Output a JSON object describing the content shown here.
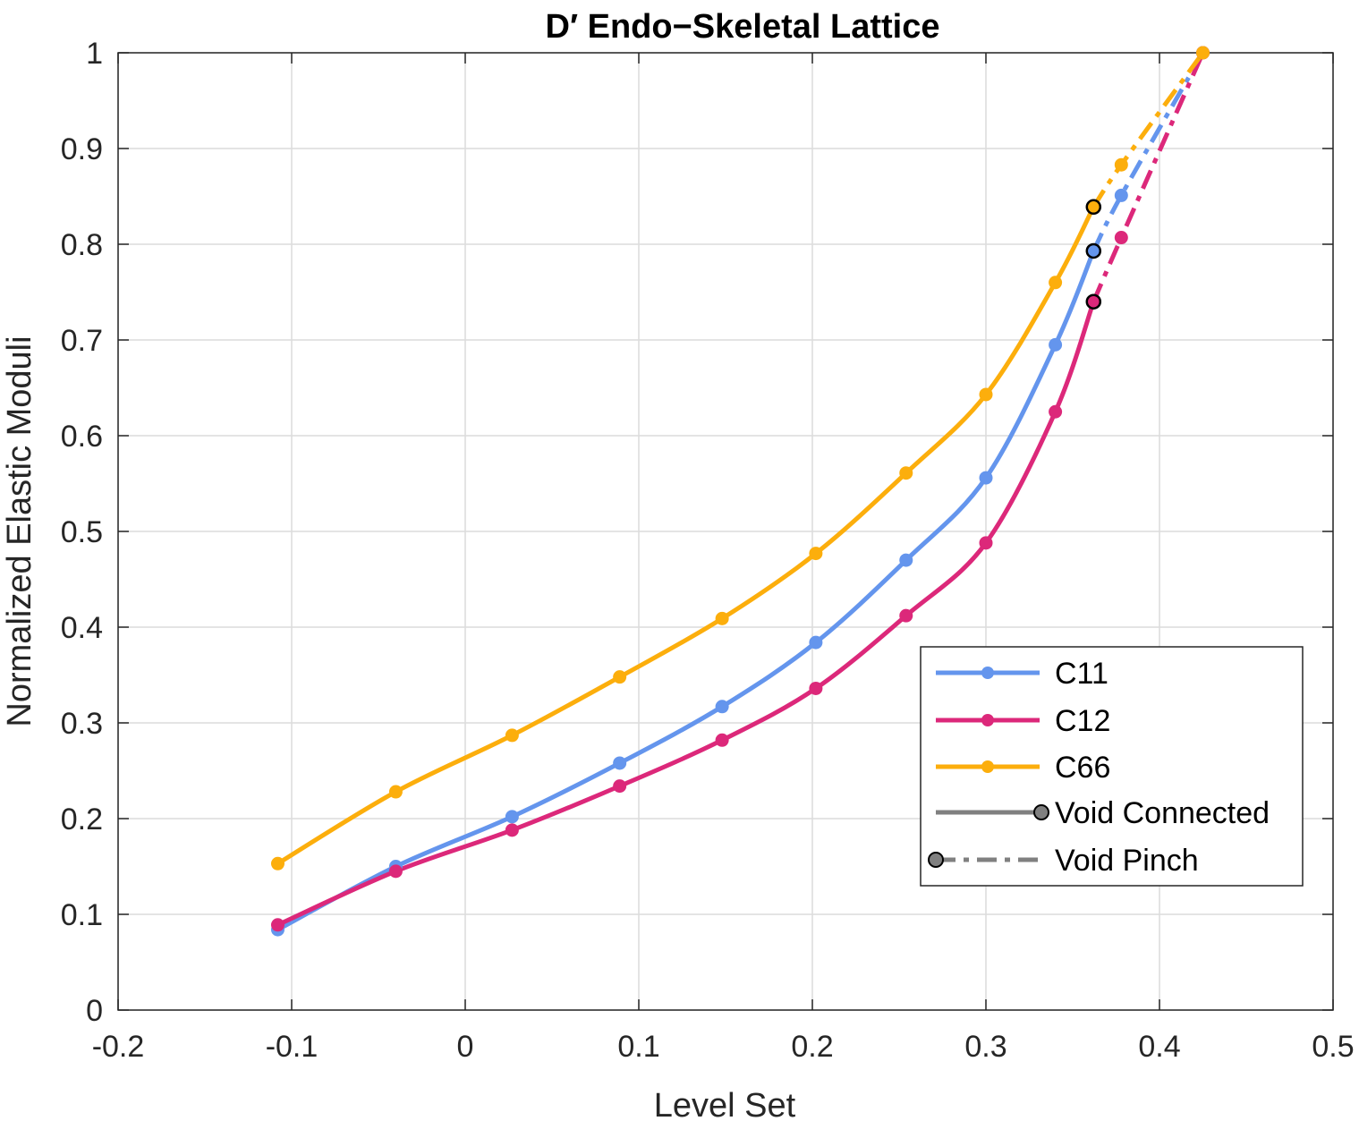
{
  "chart_data": {
    "type": "line",
    "title": "D′ Endo−Skeletal Lattice",
    "xlabel": "Level Set",
    "ylabel": "Normalized Elastic Moduli",
    "xlim": [
      -0.2,
      0.5
    ],
    "ylim": [
      0,
      1
    ],
    "xticks": [
      "-0.2",
      "-0.1",
      "0",
      "0.1",
      "0.2",
      "0.3",
      "0.4",
      "0.5"
    ],
    "yticks": [
      "0",
      "0.1",
      "0.2",
      "0.3",
      "0.4",
      "0.5",
      "0.6",
      "0.7",
      "0.8",
      "0.9",
      "1"
    ],
    "xtick_values": [
      -0.2,
      -0.1,
      0,
      0.1,
      0.2,
      0.3,
      0.4,
      0.5
    ],
    "ytick_values": [
      0,
      0.1,
      0.2,
      0.3,
      0.4,
      0.5,
      0.6,
      0.7,
      0.8,
      0.9,
      1
    ],
    "grid": true,
    "legend_position": "bottom-right",
    "series": [
      {
        "name": "C11",
        "color": "#6495ed",
        "connected": {
          "x": [
            -0.108,
            -0.04,
            0.027,
            0.089,
            0.148,
            0.202,
            0.254,
            0.3,
            0.34,
            0.362
          ],
          "y": [
            0.084,
            0.15,
            0.202,
            0.258,
            0.317,
            0.384,
            0.47,
            0.556,
            0.695,
            0.793
          ]
        },
        "pinch": {
          "x": [
            0.362,
            0.378,
            0.425
          ],
          "y": [
            0.793,
            0.851,
            1.0
          ]
        }
      },
      {
        "name": "C12",
        "color": "#dc287a",
        "connected": {
          "x": [
            -0.108,
            -0.04,
            0.027,
            0.089,
            0.148,
            0.202,
            0.254,
            0.3,
            0.34,
            0.362
          ],
          "y": [
            0.089,
            0.145,
            0.188,
            0.234,
            0.282,
            0.336,
            0.412,
            0.488,
            0.625,
            0.74
          ]
        },
        "pinch": {
          "x": [
            0.362,
            0.378,
            0.425
          ],
          "y": [
            0.74,
            0.807,
            1.0
          ]
        }
      },
      {
        "name": "C66",
        "color": "#fcae0c",
        "connected": {
          "x": [
            -0.108,
            -0.04,
            0.027,
            0.089,
            0.148,
            0.202,
            0.254,
            0.3,
            0.34,
            0.362
          ],
          "y": [
            0.153,
            0.228,
            0.287,
            0.348,
            0.409,
            0.477,
            0.561,
            0.643,
            0.76,
            0.839
          ]
        },
        "pinch": {
          "x": [
            0.362,
            0.378,
            0.425
          ],
          "y": [
            0.839,
            0.883,
            1.0
          ]
        }
      }
    ],
    "transition_point_color": "#000000",
    "legend": {
      "entries": [
        "C11",
        "C12",
        "C66",
        "Void Connected",
        "Void Pinch"
      ],
      "style_color": "#808080"
    }
  }
}
